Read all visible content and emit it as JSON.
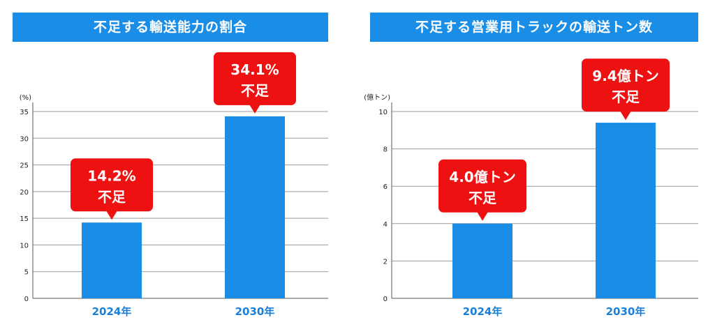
{
  "charts": [
    {
      "banner_title": "不足する輸送能力の割合",
      "unit_label": "(%)",
      "chart_data": {
        "type": "bar",
        "title": "不足する輸送能力の割合",
        "ylabel": "(%)",
        "categories": [
          "2024年",
          "2030年"
        ],
        "values": [
          14.2,
          34.1
        ],
        "ylim": [
          0,
          35
        ],
        "yticks": [
          0,
          5,
          10,
          15,
          20,
          25,
          30,
          35
        ],
        "grid": true,
        "annotations": [
          {
            "line1": "14.2%",
            "line2": "不足"
          },
          {
            "line1": "34.1%",
            "line2": "不足"
          }
        ]
      },
      "colors": {
        "bar": "#1a8ee6",
        "callout": "#ee1111"
      }
    },
    {
      "banner_title": "不足する営業用トラックの輸送トン数",
      "unit_label": "(億トン)",
      "chart_data": {
        "type": "bar",
        "title": "不足する営業用トラックの輸送トン数",
        "ylabel": "(億トン)",
        "categories": [
          "2024年",
          "2030年"
        ],
        "values": [
          4.0,
          9.4
        ],
        "ylim": [
          0,
          10
        ],
        "yticks": [
          0,
          2,
          4,
          6,
          8,
          10
        ],
        "grid": true,
        "annotations": [
          {
            "line1": "4.0億トン",
            "line2": "不足"
          },
          {
            "line1": "9.4億トン",
            "line2": "不足"
          }
        ]
      },
      "colors": {
        "bar": "#1a8ee6",
        "callout": "#ee1111"
      }
    }
  ]
}
